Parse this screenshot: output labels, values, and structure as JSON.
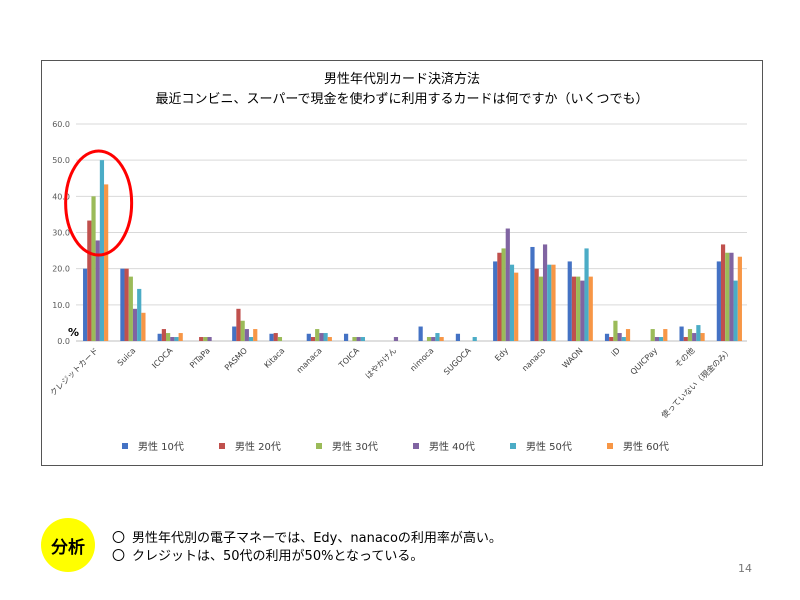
{
  "chart_data": {
    "type": "bar",
    "title": "男性年代別カード決済方法",
    "subtitle": "最近コンビニ、スーパーで現金を使わずに利用するカードは何ですか（いくつでも）",
    "ylabel": "%",
    "ylim": [
      0,
      60
    ],
    "yticks": [
      "0.0",
      "10.0",
      "20.0",
      "30.0",
      "40.0",
      "50.0",
      "60.0"
    ],
    "grid": true,
    "legend_position": "bottom",
    "categories": [
      "クレジットカード",
      "Suica",
      "ICOCA",
      "PiTaPa",
      "PASMO",
      "Kitaca",
      "manaca",
      "TOICA",
      "はやかけん",
      "nimoca",
      "SUGOCA",
      "Edy",
      "nanaco",
      "WAON",
      "iD",
      "QUICPay",
      "その他",
      "使っていない（現金のみ）"
    ],
    "series": [
      {
        "name": "男性 10代",
        "color": "#4472c4",
        "values": [
          20,
          20,
          2,
          0,
          4,
          2,
          2,
          2,
          0,
          4,
          2,
          22,
          26,
          22,
          2,
          0,
          4,
          22
        ]
      },
      {
        "name": "男性 20代",
        "color": "#c0504d",
        "values": [
          33.3,
          20,
          3.3,
          1.1,
          8.9,
          2.2,
          1.1,
          0,
          0,
          0,
          0,
          24.4,
          20,
          17.8,
          1.1,
          0,
          1.1,
          26.7
        ]
      },
      {
        "name": "男性 30代",
        "color": "#9bbb59",
        "values": [
          40,
          17.8,
          2.2,
          1.1,
          5.6,
          1.1,
          3.3,
          1.1,
          0,
          1.1,
          0,
          25.6,
          17.8,
          17.8,
          5.6,
          3.3,
          3.3,
          24.4
        ]
      },
      {
        "name": "男性 40代",
        "color": "#8064a2",
        "values": [
          27.8,
          8.9,
          1.1,
          1.1,
          3.3,
          0,
          2.2,
          1.1,
          1.1,
          1.1,
          0,
          31.1,
          26.7,
          16.7,
          2.2,
          1.1,
          2.2,
          24.4
        ]
      },
      {
        "name": "男性 50代",
        "color": "#4bacc6",
        "values": [
          50,
          14.4,
          1.1,
          0,
          1.1,
          0,
          2.2,
          1.1,
          0,
          2.2,
          1.1,
          21.1,
          21.1,
          25.6,
          1.1,
          1.1,
          4.4,
          16.7
        ]
      },
      {
        "name": "男性 60代",
        "color": "#f79646",
        "values": [
          43.3,
          7.8,
          2.2,
          0,
          3.3,
          0,
          1.1,
          0,
          0,
          1.1,
          0,
          18.9,
          21.1,
          17.8,
          3.3,
          3.3,
          2.2,
          23.3
        ]
      }
    ],
    "annotation": "red circle highlighting クレジットカード bars (男性 50代 = 50%)",
    "annotation_color": "#ff0000"
  },
  "analysis": {
    "badge": "分析",
    "bullet": "〇",
    "lines": [
      "男性年代別の電子マネーでは、Edy、nanacoの利用率が高い。",
      "クレジットは、50代の利用が50%となっている。"
    ]
  },
  "page_number": "14"
}
